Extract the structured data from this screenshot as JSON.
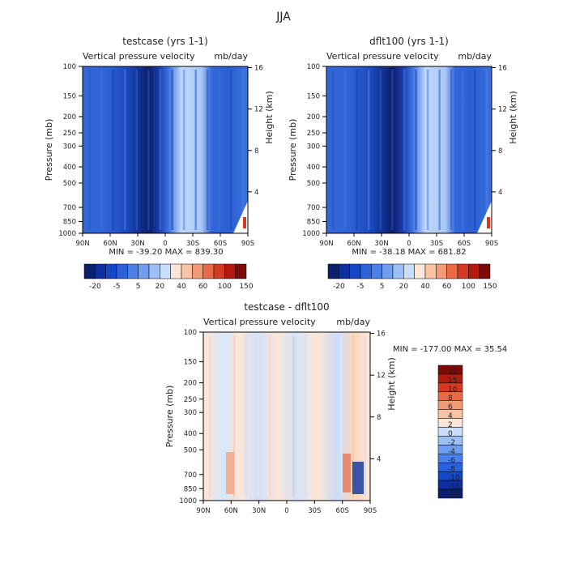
{
  "figure_title": "JJA",
  "lat_ticks": [
    "90N",
    "60N",
    "30N",
    "0",
    "30S",
    "60S",
    "90S"
  ],
  "pressure_ticks": [
    "100",
    "150",
    "200",
    "250",
    "300",
    "400",
    "500",
    "700",
    "850",
    "1000"
  ],
  "height_ticks": [
    "16",
    "12",
    "8",
    "4"
  ],
  "ylabel_left": "Pressure (mb)",
  "ylabel_right": "Height (km)",
  "panels": [
    {
      "title": "testcase (yrs 1-1)",
      "subtitle_left": "Vertical pressure velocity",
      "subtitle_right": "mb/day",
      "min_text": "MIN = -39.20",
      "max_text": "MAX = 839.30",
      "colorbar_labels": [
        "-20",
        "-5",
        "5",
        "20",
        "40",
        "60",
        "100",
        "150"
      ],
      "colorbar_colors": [
        "#0a1f6e",
        "#0d2fa0",
        "#1446c8",
        "#2a62dc",
        "#4a80e8",
        "#6f9ef0",
        "#9cc0f6",
        "#c9defa",
        "#fde6d6",
        "#f8c4a5",
        "#f29a73",
        "#e86a47",
        "#d43a22",
        "#b21a0d",
        "#7c0a05"
      ]
    },
    {
      "title": "dflt100 (yrs 1-1)",
      "subtitle_left": "Vertical pressure velocity",
      "subtitle_right": "mb/day",
      "min_text": "MIN = -38.18",
      "max_text": "MAX = 681.82",
      "colorbar_labels": [
        "-20",
        "-5",
        "5",
        "20",
        "40",
        "60",
        "100",
        "150"
      ],
      "colorbar_colors": [
        "#0a1f6e",
        "#0d2fa0",
        "#1446c8",
        "#2a62dc",
        "#4a80e8",
        "#6f9ef0",
        "#9cc0f6",
        "#c9defa",
        "#fde6d6",
        "#f8c4a5",
        "#f29a73",
        "#e86a47",
        "#d43a22",
        "#b21a0d",
        "#7c0a05"
      ]
    },
    {
      "title": "testcase - dflt100",
      "subtitle_left": "Vertical pressure velocity",
      "subtitle_right": "mb/day",
      "min_text": "MIN = -177.00",
      "max_text": "MAX =  35.54",
      "colorbar_labels": [
        "20",
        "15",
        "10",
        "8",
        "6",
        "4",
        "2",
        "0",
        "-2",
        "-4",
        "-6",
        "-8",
        "-10",
        "-15",
        "-20"
      ],
      "colorbar_colors": [
        "#7c0a05",
        "#b21a0d",
        "#d43a22",
        "#e86a47",
        "#f29a73",
        "#f8c4a5",
        "#fde6d6",
        "#c9defa",
        "#9cc0f6",
        "#6f9ef0",
        "#4a80e8",
        "#2a62dc",
        "#1446c8",
        "#0d2fa0",
        "#0a1f6e"
      ]
    }
  ],
  "chart_data": [
    {
      "type": "heatmap",
      "title": "testcase (yrs 1-1)",
      "subtitle": "Vertical pressure velocity",
      "units": "mb/day",
      "x": [
        "90N",
        "60N",
        "30N",
        "0",
        "30S",
        "60S",
        "90S"
      ],
      "y_pressure_mb": [
        100,
        150,
        200,
        250,
        300,
        400,
        500,
        700,
        850,
        1000
      ],
      "y_height_km": [
        16,
        12,
        8,
        4
      ],
      "xlabel": "",
      "ylabel": "Pressure (mb)",
      "ylabel_right": "Height (km)",
      "min": -39.2,
      "max": 839.3,
      "levels": [
        -20,
        -15,
        -10,
        -5,
        0,
        5,
        10,
        20,
        30,
        40,
        50,
        60,
        80,
        100,
        150
      ]
    },
    {
      "type": "heatmap",
      "title": "dflt100 (yrs 1-1)",
      "subtitle": "Vertical pressure velocity",
      "units": "mb/day",
      "x": [
        "90N",
        "60N",
        "30N",
        "0",
        "30S",
        "60S",
        "90S"
      ],
      "y_pressure_mb": [
        100,
        150,
        200,
        250,
        300,
        400,
        500,
        700,
        850,
        1000
      ],
      "y_height_km": [
        16,
        12,
        8,
        4
      ],
      "xlabel": "",
      "ylabel": "Pressure (mb)",
      "ylabel_right": "Height (km)",
      "min": -38.18,
      "max": 681.82,
      "levels": [
        -20,
        -15,
        -10,
        -5,
        0,
        5,
        10,
        20,
        30,
        40,
        50,
        60,
        80,
        100,
        150
      ]
    },
    {
      "type": "heatmap",
      "title": "testcase - dflt100",
      "subtitle": "Vertical pressure velocity",
      "units": "mb/day",
      "x": [
        "90N",
        "60N",
        "30N",
        "0",
        "30S",
        "60S",
        "90S"
      ],
      "y_pressure_mb": [
        100,
        150,
        200,
        250,
        300,
        400,
        500,
        700,
        850,
        1000
      ],
      "y_height_km": [
        16,
        12,
        8,
        4
      ],
      "xlabel": "",
      "ylabel": "Pressure (mb)",
      "ylabel_right": "Height (km)",
      "min": -177.0,
      "max": 35.54,
      "levels": [
        -20,
        -15,
        -10,
        -8,
        -6,
        -4,
        -2,
        0,
        2,
        4,
        6,
        8,
        10,
        15,
        20
      ]
    }
  ]
}
